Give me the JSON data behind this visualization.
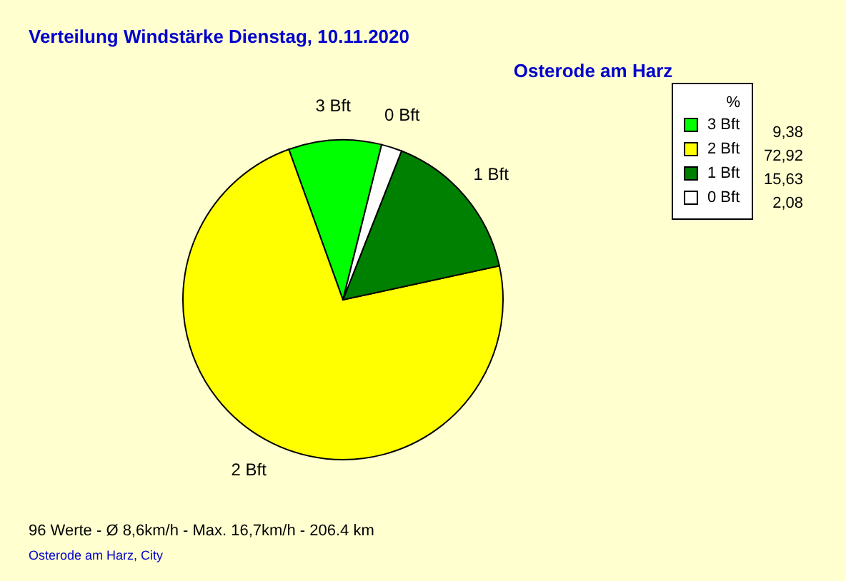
{
  "chart_data": {
    "type": "pie",
    "title": "Verteilung Windstärke  Dienstag, 10.11.2020",
    "subtitle": "Osterode am Harz",
    "legend_title": "%",
    "categories": [
      "3 Bft",
      "2 Bft",
      "1 Bft",
      "0 Bft"
    ],
    "values": [
      9.38,
      72.92,
      15.63,
      2.08
    ],
    "value_labels": [
      "9,38",
      "72,92",
      "15,63",
      "2,08"
    ],
    "colors": [
      "#00ff00",
      "#ffff00",
      "#008000",
      "#ffffff"
    ],
    "legend": "top right",
    "annotations": [
      "96 Werte   -   Ø 8,6km/h  -  Max. 16,7km/h   -   206.4 km",
      "Osterode am Harz, City"
    ]
  }
}
